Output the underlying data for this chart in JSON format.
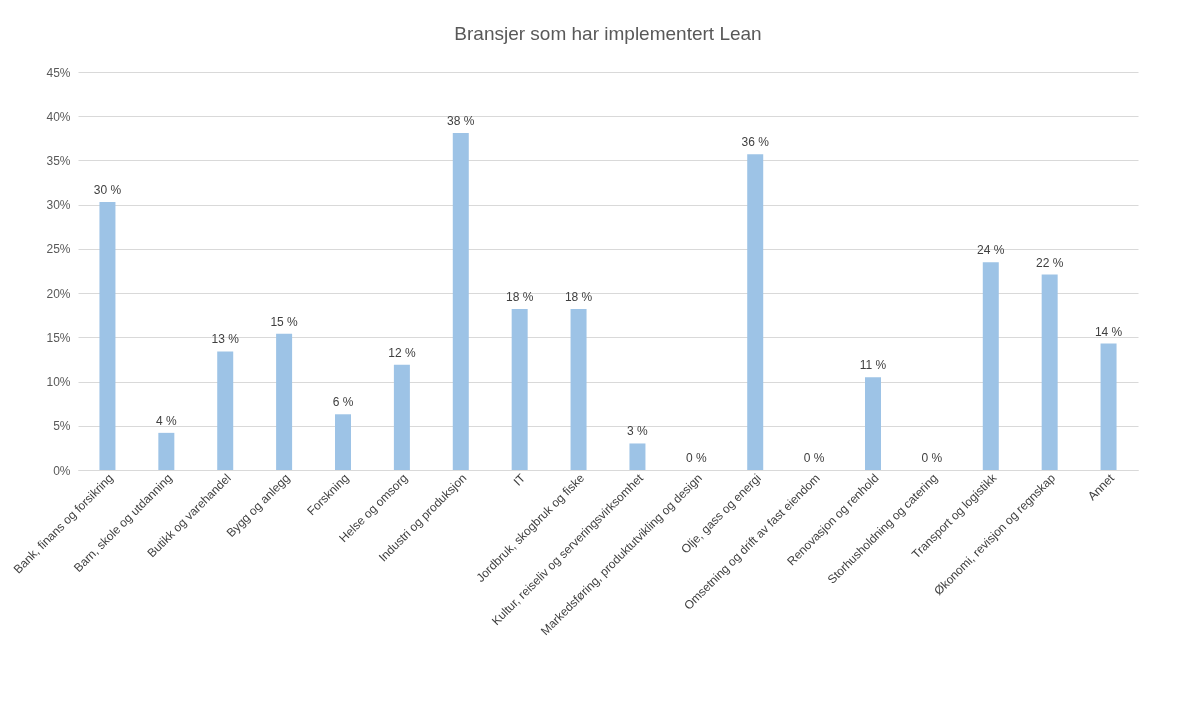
{
  "chart_data": {
    "type": "bar",
    "title": "Bransjer som har implementert Lean",
    "categories": [
      "Bank, finans og forsikring",
      "Barn, skole og utdanning",
      "Butikk og varehandel",
      "Bygg og anlegg",
      "Forskning",
      "Helse og omsorg",
      "Industri og produksjon",
      "IT",
      "Jordbruk, skogbruk og fiske",
      "Kultur, reiseliv og serveringsvirksomhet",
      "Markedsføring, produktutvikling og design",
      "Olje, gass og energi",
      "Omsetning og drift av fast eiendom",
      "Renovasjon og renhold",
      "Storhusholdning og catering",
      "Transport og logistikk",
      "Økonomi, revisjon og regnskap",
      "Annet"
    ],
    "values": [
      30.3,
      4.2,
      13.4,
      15.4,
      6.3,
      11.9,
      38.1,
      18.2,
      18.2,
      3.0,
      0,
      35.7,
      0,
      10.5,
      0,
      23.5,
      22.1,
      14.3
    ],
    "value_labels": [
      "30 %",
      "4 %",
      "13 %",
      "15 %",
      "6 %",
      "12 %",
      "38 %",
      "18 %",
      "18 %",
      "3 %",
      "0 %",
      "36 %",
      "0 %",
      "11 %",
      "0 %",
      "24 %",
      "22 %",
      "14 %"
    ],
    "color": "#9dc3e6",
    "ylim": [
      0,
      45
    ],
    "yticks": [
      {
        "value": 0,
        "label": "0%"
      },
      {
        "value": 5,
        "label": "5%"
      },
      {
        "value": 10,
        "label": "10%"
      },
      {
        "value": 15,
        "label": "15%"
      },
      {
        "value": 20,
        "label": "20%"
      },
      {
        "value": 25,
        "label": "25%"
      },
      {
        "value": 30,
        "label": "30%"
      },
      {
        "value": 35,
        "label": "35%"
      },
      {
        "value": 40,
        "label": "40%"
      },
      {
        "value": 45,
        "label": "45%"
      }
    ],
    "grid": "y"
  }
}
